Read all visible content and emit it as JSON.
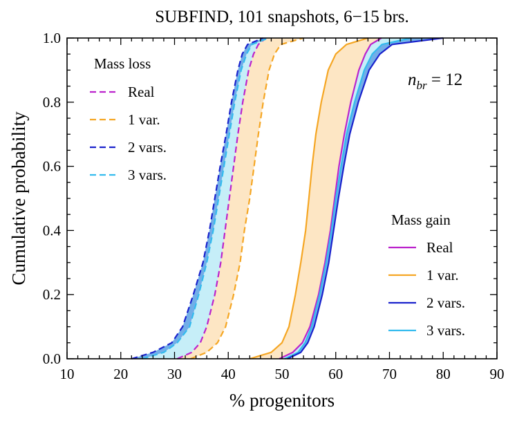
{
  "chart_data": {
    "type": "line",
    "title": "SUBFIND, 101 snapshots, 6−15 brs.",
    "xlabel": "% progenitors",
    "ylabel": "Cumulative probability",
    "xlim": [
      10,
      90
    ],
    "ylim": [
      0.0,
      1.0
    ],
    "xticks": [
      "10",
      "20",
      "30",
      "40",
      "50",
      "60",
      "70",
      "80",
      "90"
    ],
    "yticks": [
      "0.0",
      "0.2",
      "0.4",
      "0.6",
      "0.8",
      "1.0"
    ],
    "grid": false,
    "annotation": {
      "base": "n",
      "subscript": "br",
      "rest": " = 12"
    },
    "legends": [
      {
        "title": "Mass loss",
        "location": "upper-left",
        "linestyle": "dashed",
        "entries": [
          {
            "label": "Real",
            "color": "#bb22cc"
          },
          {
            "label": "1 var.",
            "color": "#f5a623"
          },
          {
            "label": "2 vars.",
            "color": "#1a22cc"
          },
          {
            "label": "3 vars.",
            "color": "#33bbee"
          }
        ]
      },
      {
        "title": "Mass gain",
        "location": "lower-right",
        "linestyle": "solid",
        "entries": [
          {
            "label": "Real",
            "color": "#bb22cc"
          },
          {
            "label": "1 var.",
            "color": "#f5a623"
          },
          {
            "label": "2 vars.",
            "color": "#1a22cc"
          },
          {
            "label": "3 vars.",
            "color": "#33bbee"
          }
        ]
      }
    ],
    "y": [
      0.0,
      0.02,
      0.05,
      0.1,
      0.2,
      0.3,
      0.4,
      0.5,
      0.6,
      0.7,
      0.8,
      0.9,
      0.95,
      0.98,
      1.0
    ],
    "series": [
      {
        "name": "Mass loss — Real",
        "group": "loss",
        "color": "#bb22cc",
        "dash": true,
        "x": [
          30.5,
          33.2,
          34.8,
          36.0,
          37.5,
          38.6,
          39.4,
          40.2,
          41.0,
          41.8,
          42.7,
          43.8,
          44.7,
          45.6,
          47.0
        ]
      },
      {
        "name": "Mass loss — 1 var.",
        "group": "loss",
        "color": "#f5a623",
        "dash": true,
        "x": [
          33.0,
          36.0,
          38.0,
          39.5,
          41.0,
          42.2,
          43.0,
          44.0,
          44.8,
          45.6,
          46.5,
          47.6,
          48.6,
          49.8,
          54.0
        ]
      },
      {
        "name": "Mass loss — 2 vars.",
        "group": "loss",
        "color": "#1a22cc",
        "dash": true,
        "x": [
          22.0,
          26.0,
          29.5,
          31.5,
          33.5,
          35.3,
          36.5,
          37.5,
          38.5,
          39.6,
          40.6,
          41.8,
          42.6,
          43.6,
          46.5
        ]
      },
      {
        "name": "Mass loss — 3 vars.",
        "group": "loss",
        "color": "#33bbee",
        "dash": true,
        "x": [
          24.0,
          28.0,
          30.5,
          32.8,
          34.5,
          36.0,
          37.2,
          38.2,
          39.2,
          40.2,
          41.2,
          42.4,
          43.4,
          44.4,
          47.5
        ]
      },
      {
        "name": "Mass gain — Real",
        "group": "gain",
        "color": "#bb22cc",
        "dash": false,
        "x": [
          49.5,
          52.0,
          53.8,
          55.2,
          56.8,
          58.0,
          59.0,
          59.8,
          60.6,
          61.6,
          62.8,
          64.3,
          65.5,
          66.5,
          68.5
        ]
      },
      {
        "name": "Mass gain — 1 var.",
        "group": "gain",
        "color": "#f5a623",
        "dash": false,
        "x": [
          44.0,
          48.0,
          50.0,
          51.3,
          52.5,
          53.5,
          54.4,
          55.0,
          55.6,
          56.3,
          57.3,
          58.6,
          60.0,
          62.0,
          66.0
        ]
      },
      {
        "name": "Mass gain — 2 vars.",
        "group": "gain",
        "color": "#1a22cc",
        "dash": false,
        "x": [
          51.0,
          53.5,
          54.8,
          56.0,
          57.5,
          58.7,
          59.6,
          60.5,
          61.5,
          62.6,
          64.2,
          66.2,
          68.2,
          70.5,
          80.0
        ]
      },
      {
        "name": "Mass gain — 3 vars.",
        "group": "gain",
        "color": "#33bbee",
        "dash": false,
        "x": [
          50.5,
          53.0,
          54.3,
          55.5,
          57.0,
          58.2,
          59.2,
          60.0,
          61.0,
          62.0,
          63.5,
          65.3,
          66.8,
          68.6,
          74.0
        ]
      }
    ],
    "bands": [
      {
        "group": "loss",
        "fill": "#fde6c4",
        "lower": "Mass loss — Real",
        "upper": "Mass loss — 1 var."
      },
      {
        "group": "loss",
        "fill": "#c6eef8",
        "lower": "Mass loss — 2 vars.",
        "upper": "Mass loss — Real"
      },
      {
        "group": "loss",
        "fill": "#72aee8",
        "lower": "Mass loss — 2 vars.",
        "upper": "Mass loss — 3 vars."
      },
      {
        "group": "gain",
        "fill": "#fde6c4",
        "lower": "Mass gain — 1 var.",
        "upper": "Mass gain — Real"
      },
      {
        "group": "gain",
        "fill": "#c6eef8",
        "lower": "Mass gain — Real",
        "upper": "Mass gain — 2 vars."
      },
      {
        "group": "gain",
        "fill": "#72aee8",
        "lower": "Mass gain — 3 vars.",
        "upper": "Mass gain — 2 vars."
      }
    ]
  }
}
